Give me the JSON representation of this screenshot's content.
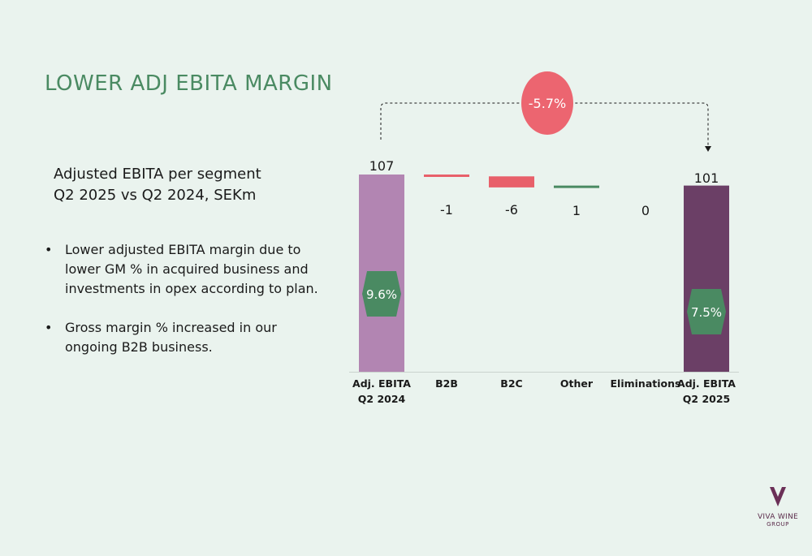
{
  "slide": {
    "title": "LOWER ADJ EBITA MARGIN",
    "subtitle_line1": "Adjusted EBITA per segment",
    "subtitle_line2": "Q2 2025 vs Q2 2024, SEKm",
    "bullets": [
      "Lower adjusted EBITA margin due to lower GM % in acquired business and investments in opex according to plan.",
      "Gross margin % increased in our ongoing B2B business."
    ],
    "bullet_marker": "•"
  },
  "logo": {
    "name": "VIVA WINE",
    "sub": "GROUP",
    "color": "#6b2f57"
  },
  "chart_data": {
    "type": "bar",
    "subtype": "waterfall",
    "categories": [
      "Adj. EBITA\nQ2 2024",
      "B2B",
      "B2C",
      "Other",
      "Eliminations",
      "Adj. EBITA\nQ2 2025"
    ],
    "values": [
      107,
      -1,
      -6,
      1,
      0,
      101
    ],
    "value_labels": [
      "107",
      "-1",
      "-6",
      "1",
      "0",
      "101"
    ],
    "kinds": [
      "total",
      "delta",
      "delta",
      "delta",
      "delta",
      "total"
    ],
    "margin_labels": [
      {
        "category_index": 0,
        "label": "9.6%"
      },
      {
        "category_index": 5,
        "label": "7.5%"
      }
    ],
    "change_label": "-5.7%",
    "colors": {
      "start_total": "#b285b2",
      "end_total": "#6b3f66",
      "negative": "#e8606a",
      "positive": "#4a8a62",
      "margin_badge": "#4a8a62",
      "change_circle": "#ec6570"
    }
  }
}
